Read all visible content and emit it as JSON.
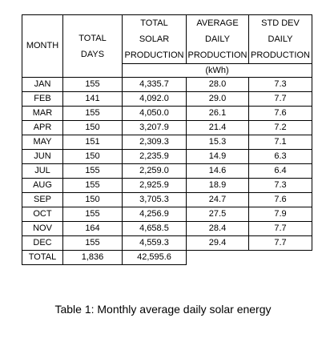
{
  "table": {
    "headers": {
      "month": "MONTH",
      "total_days": [
        "TOTAL",
        "DAYS"
      ],
      "total_solar": [
        "TOTAL",
        "SOLAR",
        "PRODUCTION"
      ],
      "avg_daily": [
        "AVERAGE",
        "DAILY",
        "PRODUCTION"
      ],
      "std_dev": [
        "STD DEV",
        "DAILY",
        "PRODUCTION"
      ]
    },
    "units": "(kWh)",
    "rows": [
      {
        "month": "JAN",
        "days": "155",
        "total": "4,335.7",
        "avg": "28.0",
        "std": "7.3"
      },
      {
        "month": "FEB",
        "days": "141",
        "total": "4,092.0",
        "avg": "29.0",
        "std": "7.7"
      },
      {
        "month": "MAR",
        "days": "155",
        "total": "4,050.0",
        "avg": "26.1",
        "std": "7.6"
      },
      {
        "month": "APR",
        "days": "150",
        "total": "3,207.9",
        "avg": "21.4",
        "std": "7.2"
      },
      {
        "month": "MAY",
        "days": "151",
        "total": "2,309.3",
        "avg": "15.3",
        "std": "7.1"
      },
      {
        "month": "JUN",
        "days": "150",
        "total": "2,235.9",
        "avg": "14.9",
        "std": "6.3"
      },
      {
        "month": "JUL",
        "days": "155",
        "total": "2,259.0",
        "avg": "14.6",
        "std": "6.4"
      },
      {
        "month": "AUG",
        "days": "155",
        "total": "2,925.9",
        "avg": "18.9",
        "std": "7.3"
      },
      {
        "month": "SEP",
        "days": "150",
        "total": "3,705.3",
        "avg": "24.7",
        "std": "7.6"
      },
      {
        "month": "OCT",
        "days": "155",
        "total": "4,256.9",
        "avg": "27.5",
        "std": "7.9"
      },
      {
        "month": "NOV",
        "days": "164",
        "total": "4,658.5",
        "avg": "28.4",
        "std": "7.7"
      },
      {
        "month": "DEC",
        "days": "155",
        "total": "4,559.3",
        "avg": "29.4",
        "std": "7.7"
      }
    ],
    "total_row": {
      "label": "TOTAL",
      "days": "1,836",
      "total": "42,595.6"
    }
  },
  "caption": "Table 1: Monthly average daily solar energy"
}
